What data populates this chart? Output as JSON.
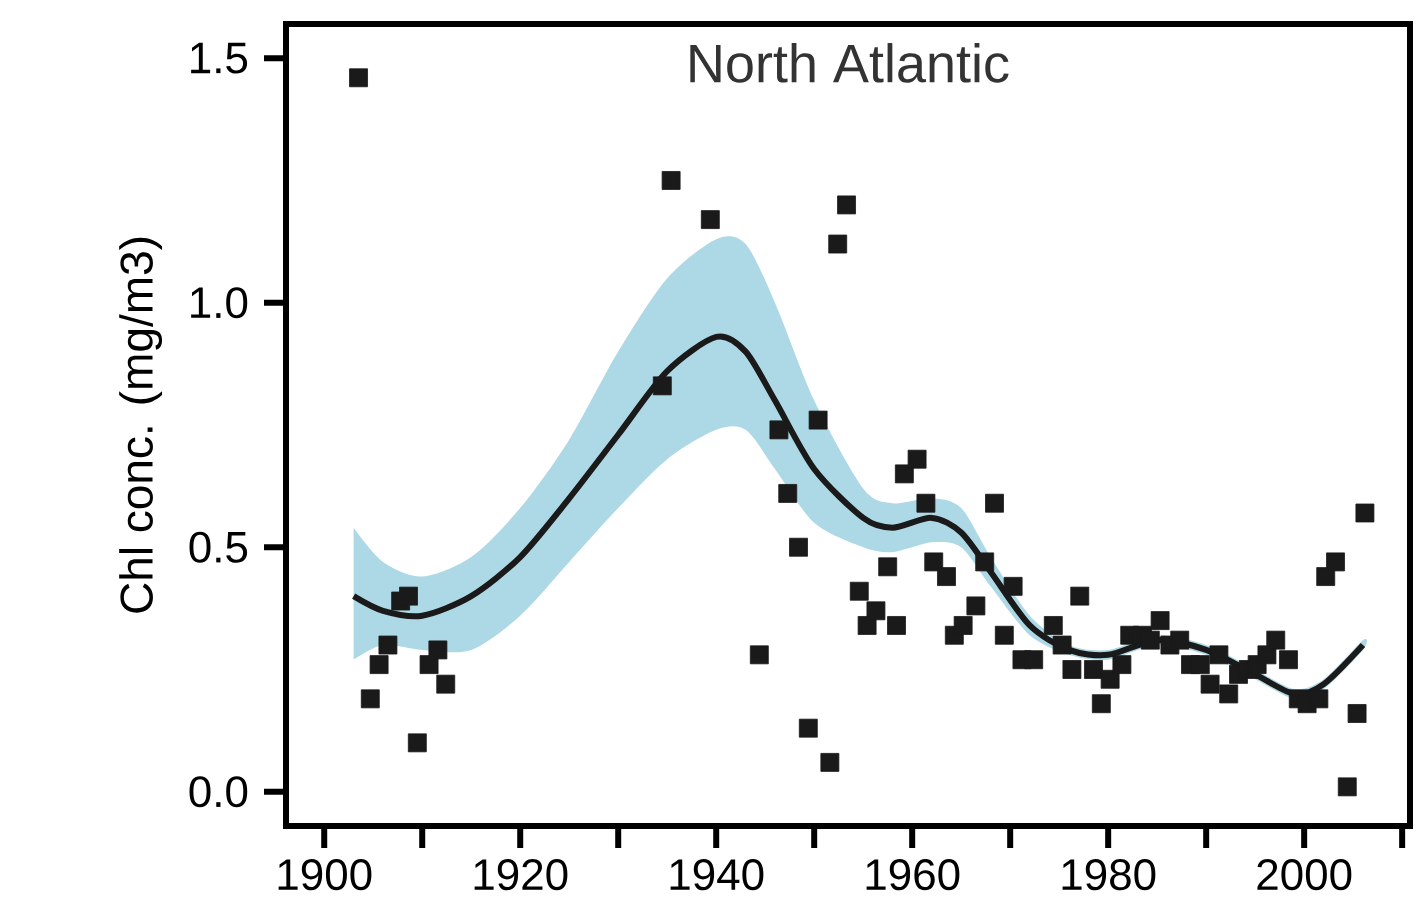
{
  "chart_data": {
    "type": "scatter",
    "title": "North Atlantic",
    "ylabel": "Chl conc. (mg/m3)",
    "xlim": [
      1896.1,
      2010.8
    ],
    "ylim": [
      -0.07,
      1.57
    ],
    "xticks": [
      1900,
      {
        "value": 1910,
        "label": null
      },
      1920,
      {
        "value": 1930,
        "label": null
      },
      1940,
      {
        "value": 1950,
        "label": null
      },
      1960,
      {
        "value": 1970,
        "label": null
      },
      1980,
      {
        "value": 1990,
        "label": null
      },
      2000,
      {
        "value": 2010,
        "label": null
      }
    ],
    "yticks": [
      {
        "value": 0,
        "label": "0.0"
      },
      {
        "value": 0.5,
        "label": "0.5"
      },
      {
        "value": 1,
        "label": "1.0"
      },
      {
        "value": 1.5,
        "label": "1.5"
      }
    ],
    "grid": false,
    "series": [
      {
        "type": "line",
        "color": "#1a1a1a",
        "marker": "none",
        "x": [
          1903,
          1906,
          1910,
          1915,
          1920,
          1925,
          1930,
          1935,
          1940,
          1943,
          1946,
          1950,
          1955,
          1958,
          1962,
          1965,
          1968,
          1972,
          1976,
          1980,
          1985,
          1990,
          1995,
          1999,
          2002,
          2006
        ],
        "values": [
          0.4,
          0.37,
          0.36,
          0.4,
          0.48,
          0.6,
          0.73,
          0.86,
          0.93,
          0.9,
          0.8,
          0.66,
          0.56,
          0.54,
          0.56,
          0.53,
          0.45,
          0.34,
          0.29,
          0.28,
          0.31,
          0.29,
          0.24,
          0.2,
          0.22,
          0.3
        ],
        "upper": [
          0.54,
          0.47,
          0.44,
          0.48,
          0.58,
          0.72,
          0.9,
          1.05,
          1.13,
          1.12,
          1.0,
          0.8,
          0.62,
          0.59,
          0.6,
          0.58,
          0.48,
          0.36,
          0.3,
          0.29,
          0.32,
          0.3,
          0.25,
          0.21,
          0.23,
          0.31
        ],
        "lower": [
          0.27,
          0.3,
          0.29,
          0.29,
          0.36,
          0.47,
          0.58,
          0.68,
          0.74,
          0.74,
          0.66,
          0.55,
          0.5,
          0.49,
          0.51,
          0.5,
          0.42,
          0.32,
          0.28,
          0.27,
          0.3,
          0.28,
          0.23,
          0.19,
          0.21,
          0.29
        ]
      },
      {
        "color": "#1a1a1a",
        "marker": "square",
        "x": [
          1903.5,
          1904.7,
          1905.6,
          1906.5,
          1907.8,
          1908.6,
          1909.5,
          1910.7,
          1911.6,
          1912.4,
          1934.5,
          1935.4,
          1939.4,
          1944.4,
          1946.4,
          1947.3,
          1948.4,
          1949.4,
          1950.4,
          1951.6,
          1952.4,
          1953.3,
          1954.6,
          1955.4,
          1956.3,
          1957.5,
          1958.4,
          1959.2,
          1960.5,
          1961.4,
          1962.2,
          1963.5,
          1964.3,
          1965.2,
          1966.5,
          1967.4,
          1968.4,
          1969.4,
          1970.3,
          1971.2,
          1972.4,
          1974.4,
          1975.3,
          1976.3,
          1977.1,
          1978.5,
          1979.3,
          1980.2,
          1981.4,
          1982.2,
          1983.5,
          1984.3,
          1985.3,
          1986.3,
          1987.3,
          1988.4,
          1989.4,
          1990.4,
          1991.3,
          1992.3,
          1993.3,
          1994.3,
          1995.2,
          1996.2,
          1997.1,
          1998.4,
          1999.4,
          2000.3,
          2001.5,
          2002.2,
          2003.2,
          2004.4,
          2005.4,
          2006.2
        ],
        "values": [
          1.46,
          0.19,
          0.26,
          0.3,
          0.39,
          0.4,
          0.1,
          0.26,
          0.29,
          0.22,
          0.83,
          1.25,
          1.17,
          0.28,
          0.74,
          0.61,
          0.5,
          0.13,
          0.76,
          0.06,
          1.12,
          1.2,
          0.41,
          0.34,
          0.37,
          0.46,
          0.34,
          0.65,
          0.68,
          0.59,
          0.47,
          0.44,
          0.32,
          0.34,
          0.38,
          0.47,
          0.59,
          0.32,
          0.42,
          0.27,
          0.27,
          0.34,
          0.3,
          0.25,
          0.4,
          0.25,
          0.18,
          0.23,
          0.26,
          0.32,
          0.32,
          0.31,
          0.35,
          0.3,
          0.31,
          0.26,
          0.26,
          0.22,
          0.28,
          0.2,
          0.24,
          0.25,
          0.26,
          0.28,
          0.31,
          0.27,
          0.19,
          0.18,
          0.19,
          0.44,
          0.47,
          0.01,
          0.16,
          0.57
        ]
      }
    ]
  }
}
